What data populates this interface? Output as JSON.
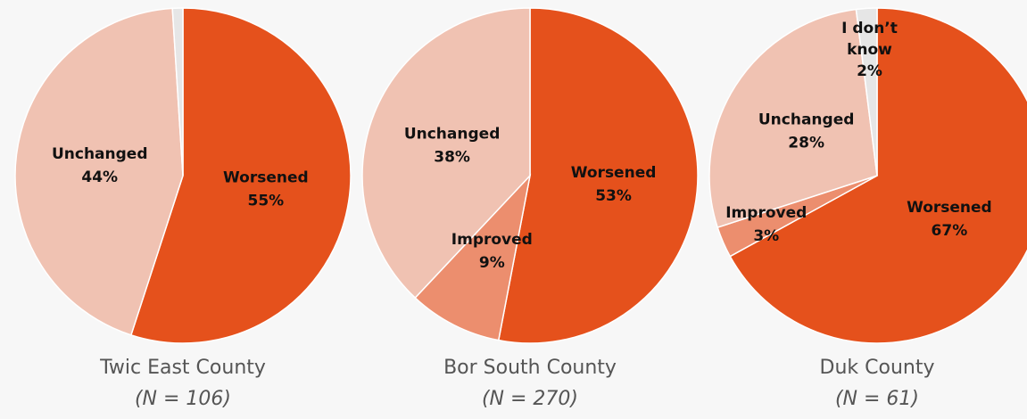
{
  "chart_data": [
    {
      "type": "pie",
      "title": "Twic East County",
      "subtitle": "(N = 106)",
      "categories": [
        "Worsened",
        "Unchanged",
        null
      ],
      "values": [
        55,
        44,
        1
      ],
      "value_labels": [
        "55%",
        "44%",
        null
      ],
      "colors": [
        "#e5511c",
        "#f0c2b2",
        "#e6e6e6"
      ]
    },
    {
      "type": "pie",
      "title": "Bor South County",
      "subtitle": "(N = 270)",
      "categories": [
        "Worsened",
        "Improved",
        "Unchanged"
      ],
      "values": [
        53,
        9,
        38
      ],
      "value_labels": [
        "53%",
        "9%",
        "38%"
      ],
      "colors": [
        "#e5511c",
        "#ec8e6e",
        "#f0c2b2"
      ]
    },
    {
      "type": "pie",
      "title": "Duk County",
      "subtitle": "(N = 61)",
      "categories": [
        "Worsened",
        "Improved",
        "Unchanged",
        "I don’t know"
      ],
      "values": [
        67,
        3,
        28,
        2
      ],
      "value_labels": [
        "67%",
        "3%",
        "28%",
        "2%"
      ],
      "colors": [
        "#e5511c",
        "#ec8e6e",
        "#f0c2b2",
        "#e6e6e6"
      ]
    }
  ]
}
